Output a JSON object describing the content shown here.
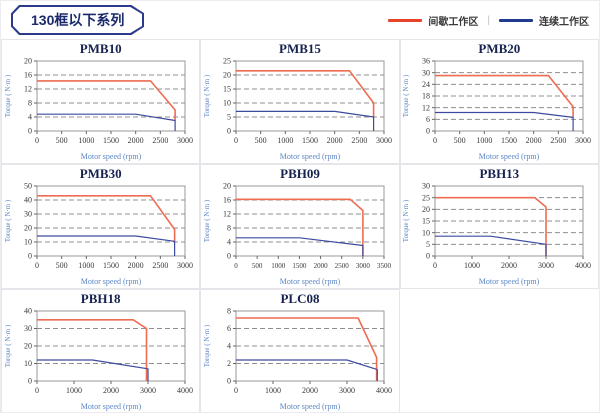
{
  "header": {
    "title": "130框以下系列",
    "legend": [
      {
        "label": "间歇工作区",
        "color_key": "legend_red"
      },
      {
        "label": "连续工作区",
        "color_key": "legend_blue"
      }
    ],
    "legend_separator": "|"
  },
  "colors": {
    "curve_red": "#ee6c52",
    "curve_blue": "#3c4ba0",
    "legend_red": "#e8432b",
    "legend_blue": "#1f3a8f",
    "grid_gray": "#8f8f8f",
    "axis_label_blue": "#5b86c5",
    "title_navy": "#17224e"
  },
  "chart_data": [
    {
      "type": "line",
      "title": "PMB10",
      "xlabel": "Motor speed (rpm)",
      "ylabel": "Torque ( N·m )",
      "xlim": [
        0,
        3000
      ],
      "xticks": [
        0,
        500,
        1000,
        1500,
        2000,
        2500,
        3000
      ],
      "ylim": [
        0,
        20
      ],
      "yticks": [
        0,
        4,
        8,
        12,
        16,
        20
      ],
      "grid": "dashed-horizontal",
      "legend_position": "none",
      "series": [
        {
          "name": "间歇工作区",
          "color": "curve_red",
          "points": [
            [
              0,
              14.3
            ],
            [
              2300,
              14.3
            ],
            [
              2800,
              6
            ],
            [
              2800,
              3
            ]
          ]
        },
        {
          "name": "连续工作区",
          "color": "curve_blue",
          "points": [
            [
              0,
              4.8
            ],
            [
              2000,
              4.8
            ],
            [
              2800,
              3
            ],
            [
              2800,
              0
            ]
          ]
        }
      ]
    },
    {
      "type": "line",
      "title": "PMB15",
      "xlabel": "Motor speed (rpm)",
      "ylabel": "Torque ( N·m )",
      "xlim": [
        0,
        3000
      ],
      "xticks": [
        0,
        500,
        1000,
        1500,
        2000,
        2500,
        3000
      ],
      "ylim": [
        0,
        25
      ],
      "yticks": [
        0,
        5,
        10,
        15,
        20,
        25
      ],
      "grid": "dashed-horizontal",
      "legend_position": "none",
      "series": [
        {
          "name": "间歇工作区",
          "color": "curve_red",
          "points": [
            [
              0,
              21.5
            ],
            [
              2300,
              21.5
            ],
            [
              2790,
              10
            ],
            [
              2790,
              5
            ]
          ]
        },
        {
          "name": "连续工作区",
          "color": "curve_blue",
          "points": [
            [
              0,
              7
            ],
            [
              2000,
              7
            ],
            [
              2790,
              5
            ],
            [
              2790,
              0
            ]
          ]
        }
      ]
    },
    {
      "type": "line",
      "title": "PMB20",
      "xlabel": "Motor speed (rpm)",
      "ylabel": "Torque ( N·m )",
      "xlim": [
        0,
        3000
      ],
      "xticks": [
        0,
        500,
        1000,
        1500,
        2000,
        2500,
        3000
      ],
      "ylim": [
        0,
        36
      ],
      "yticks": [
        0,
        6,
        12,
        18,
        24,
        30,
        36
      ],
      "grid": "dashed-horizontal",
      "legend_position": "none",
      "series": [
        {
          "name": "间歇工作区",
          "color": "curve_red",
          "points": [
            [
              0,
              28.5
            ],
            [
              2300,
              28.5
            ],
            [
              2800,
              12.5
            ],
            [
              2800,
              7
            ]
          ]
        },
        {
          "name": "连续工作区",
          "color": "curve_blue",
          "points": [
            [
              0,
              9.5
            ],
            [
              2000,
              9.5
            ],
            [
              2800,
              7
            ],
            [
              2800,
              0
            ]
          ]
        }
      ]
    },
    {
      "type": "line",
      "title": "PMB30",
      "xlabel": "Motor speed (rpm)",
      "ylabel": "Torque ( N·m )",
      "xlim": [
        0,
        3000
      ],
      "xticks": [
        0,
        500,
        1000,
        1500,
        2000,
        2500,
        3000
      ],
      "ylim": [
        0,
        50
      ],
      "yticks": [
        0,
        10,
        20,
        30,
        40,
        50
      ],
      "grid": "dashed-horizontal",
      "legend_position": "none",
      "series": [
        {
          "name": "间歇工作区",
          "color": "curve_red",
          "points": [
            [
              0,
              43
            ],
            [
              2300,
              43
            ],
            [
              2790,
              19
            ],
            [
              2790,
              10.5
            ]
          ]
        },
        {
          "name": "连续工作区",
          "color": "curve_blue",
          "points": [
            [
              0,
              14.3
            ],
            [
              2000,
              14.3
            ],
            [
              2790,
              10.5
            ],
            [
              2790,
              0
            ]
          ]
        }
      ]
    },
    {
      "type": "line",
      "title": "PBH09",
      "xlabel": "Motor speed (rpm)",
      "ylabel": "Torque ( N·m )",
      "xlim": [
        0,
        3500
      ],
      "xticks": [
        0,
        500,
        1000,
        1500,
        2000,
        2500,
        3000,
        3500
      ],
      "ylim": [
        0,
        20
      ],
      "yticks": [
        0,
        4,
        8,
        12,
        16,
        20
      ],
      "grid": "dashed-horizontal",
      "legend_position": "none",
      "series": [
        {
          "name": "间歇工作区",
          "color": "curve_red",
          "points": [
            [
              0,
              16.2
            ],
            [
              2700,
              16.2
            ],
            [
              3000,
              13
            ],
            [
              3000,
              0
            ]
          ]
        },
        {
          "name": "连续工作区",
          "color": "curve_blue",
          "points": [
            [
              0,
              5.2
            ],
            [
              1500,
              5.2
            ],
            [
              3000,
              3
            ],
            [
              3000,
              0
            ]
          ]
        }
      ]
    },
    {
      "type": "line",
      "title": "PBH13",
      "xlabel": "Motor speed (rpm)",
      "ylabel": "Torque ( N·m )",
      "xlim": [
        0,
        4000
      ],
      "xticks": [
        0,
        1000,
        2000,
        3000,
        4000
      ],
      "ylim": [
        0,
        30
      ],
      "yticks": [
        0,
        5,
        10,
        15,
        20,
        25,
        30
      ],
      "grid": "dashed-horizontal",
      "legend_position": "none",
      "series": [
        {
          "name": "间歇工作区",
          "color": "curve_red",
          "points": [
            [
              0,
              25
            ],
            [
              2700,
              25
            ],
            [
              3000,
              21
            ],
            [
              3000,
              0
            ]
          ]
        },
        {
          "name": "连续工作区",
          "color": "curve_blue",
          "points": [
            [
              0,
              8.5
            ],
            [
              1500,
              8.5
            ],
            [
              3000,
              5
            ],
            [
              3000,
              0
            ]
          ]
        }
      ]
    },
    {
      "type": "line",
      "title": "PBH18",
      "xlabel": "Motor speed (rpm)",
      "ylabel": "Torque ( N·m )",
      "xlim": [
        0,
        4000
      ],
      "xticks": [
        0,
        1000,
        2000,
        3000,
        4000
      ],
      "ylim": [
        0,
        40
      ],
      "yticks": [
        0,
        10,
        20,
        30,
        40
      ],
      "grid": "dashed-horizontal",
      "legend_position": "none",
      "series": [
        {
          "name": "间歇工作区",
          "color": "curve_red",
          "points": [
            [
              0,
              35
            ],
            [
              2600,
              35
            ],
            [
              2960,
              30
            ],
            [
              2960,
              0
            ]
          ]
        },
        {
          "name": "连续工作区",
          "color": "curve_blue",
          "points": [
            [
              0,
              12
            ],
            [
              1500,
              12
            ],
            [
              3000,
              7
            ],
            [
              3000,
              0
            ]
          ]
        }
      ]
    },
    {
      "type": "line",
      "title": "PLC08",
      "xlabel": "Motor speed (rpm)",
      "ylabel": "Torque ( N·m )",
      "xlim": [
        0,
        4000
      ],
      "xticks": [
        0,
        1000,
        2000,
        3000,
        4000
      ],
      "ylim": [
        0,
        8
      ],
      "yticks": [
        0,
        2,
        4,
        6,
        8
      ],
      "grid": "dashed-horizontal",
      "legend_position": "none",
      "series": [
        {
          "name": "间歇工作区",
          "color": "curve_red",
          "points": [
            [
              0,
              7.2
            ],
            [
              3300,
              7.2
            ],
            [
              3800,
              2.7
            ],
            [
              3800,
              0
            ]
          ]
        },
        {
          "name": "连续工作区",
          "color": "curve_blue",
          "points": [
            [
              0,
              2.4
            ],
            [
              3000,
              2.4
            ],
            [
              3820,
              1.3
            ],
            [
              3820,
              0
            ]
          ]
        }
      ]
    }
  ]
}
